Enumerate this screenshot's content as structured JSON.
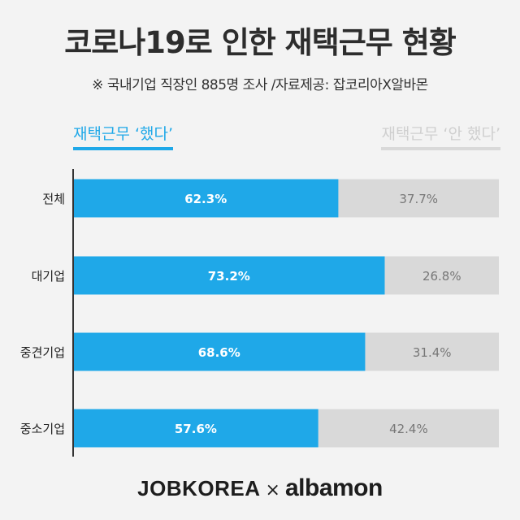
{
  "title": "코로나19로 인한 재택근무 현황",
  "subtitle": "※ 국내기업 직장인 885명 조사 /자료제공: 잡코리아X알바몬",
  "legend": {
    "did": "재택근무 ‘했다’",
    "did_not": "재택근무 ‘안 했다’"
  },
  "footer": {
    "brand1": "JOBKOREA",
    "separator": "×",
    "brand2": "albamon"
  },
  "colors": {
    "did": "#1fa8e8",
    "did_not": "#d9d9d9",
    "axis": "#333333"
  },
  "chart_data": {
    "type": "bar",
    "orientation": "horizontal",
    "stacked": true,
    "categories": [
      "전체",
      "대기업",
      "중견기업",
      "중소기업"
    ],
    "series": [
      {
        "name": "재택근무 ‘했다’",
        "values": [
          62.3,
          73.2,
          68.6,
          57.6
        ],
        "labels": [
          "62.3%",
          "73.2%",
          "68.6%",
          "57.6%"
        ]
      },
      {
        "name": "재택근무 ‘안 했다’",
        "values": [
          37.7,
          26.8,
          31.4,
          42.4
        ],
        "labels": [
          "37.7%",
          "26.8%",
          "31.4%",
          "42.4%"
        ]
      }
    ],
    "xlim": [
      0,
      100
    ],
    "grid": false,
    "legend_position": "top"
  }
}
